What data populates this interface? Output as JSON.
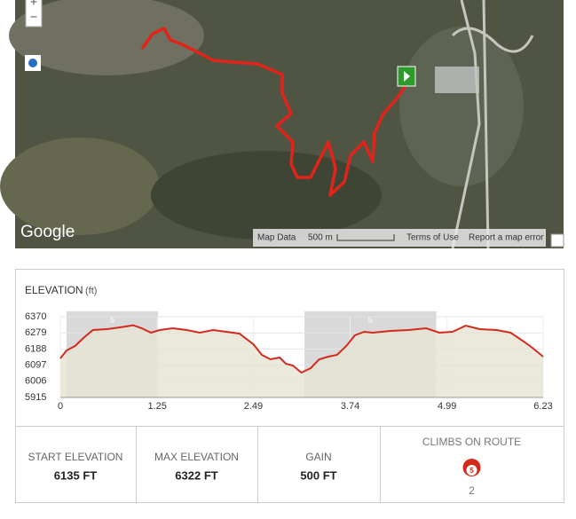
{
  "map": {
    "zoom_in": "+",
    "zoom_out": "−",
    "logo": "Google",
    "map_data": "Map Data",
    "scale": "500 m",
    "terms": "Terms of Use",
    "report": "Report a map error"
  },
  "chart_data": {
    "type": "area",
    "title": "ELEVATION",
    "unit": "(ft)",
    "x": [
      0,
      0.08,
      0.19,
      0.31,
      0.42,
      0.6,
      0.77,
      0.94,
      1.05,
      1.17,
      1.28,
      1.45,
      1.63,
      1.8,
      1.97,
      2.14,
      2.31,
      2.49,
      2.6,
      2.71,
      2.83,
      2.91,
      3.0,
      3.11,
      3.23,
      3.34,
      3.46,
      3.57,
      3.69,
      3.8,
      3.92,
      4.03,
      4.26,
      4.49,
      4.72,
      4.89,
      5.06,
      5.23,
      5.41,
      5.63,
      5.81,
      5.98,
      6.09,
      6.23
    ],
    "values": [
      6135,
      6180,
      6205,
      6255,
      6295,
      6300,
      6310,
      6322,
      6305,
      6280,
      6295,
      6305,
      6295,
      6280,
      6295,
      6285,
      6275,
      6215,
      6155,
      6130,
      6140,
      6105,
      6095,
      6055,
      6080,
      6130,
      6145,
      6155,
      6205,
      6265,
      6285,
      6280,
      6290,
      6295,
      6305,
      6280,
      6285,
      6320,
      6300,
      6295,
      6280,
      6230,
      6195,
      6145
    ],
    "line_color": "#d42a1e",
    "fill_color": "#e6e4d3",
    "climbs": [
      {
        "start": 0.08,
        "end": 1.26,
        "label": "5"
      },
      {
        "start": 3.15,
        "end": 4.85,
        "label": "5"
      }
    ],
    "xlim": [
      0,
      6.23
    ],
    "xticks": [
      0,
      1.25,
      2.49,
      3.74,
      4.99,
      6.23
    ],
    "ylim": [
      5915,
      6370
    ],
    "yticks": [
      5915,
      6006,
      6097,
      6188,
      6279,
      6370
    ],
    "grid": true
  },
  "stats": [
    {
      "label": "START ELEVATION",
      "value": "6135 FT"
    },
    {
      "label": "MAX ELEVATION",
      "value": "6322 FT"
    },
    {
      "label": "GAIN",
      "value": "500 FT"
    },
    {
      "label": "CLIMBS ON ROUTE",
      "icon": "5",
      "value": "2"
    }
  ]
}
